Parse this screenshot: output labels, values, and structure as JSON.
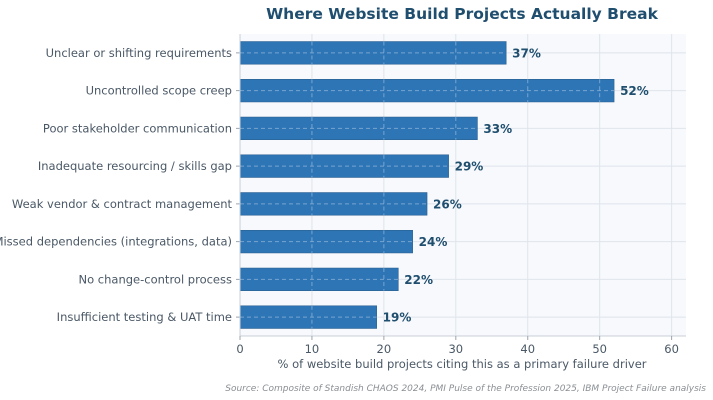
{
  "chart_data": {
    "type": "bar",
    "orientation": "horizontal",
    "title": "Where Website Build Projects Actually Break",
    "xlabel": "% of website build projects citing this as a primary failure driver",
    "ylabel": "",
    "categories": [
      "Unclear or shifting requirements",
      "Uncontrolled scope creep",
      "Poor stakeholder communication",
      "Inadequate resourcing / skills gap",
      "Weak vendor & contract management",
      "Missed dependencies (integrations, data)",
      "No change-control process",
      "Insufficient testing & UAT time"
    ],
    "values": [
      37,
      52,
      33,
      29,
      26,
      24,
      22,
      19
    ],
    "value_labels": [
      "37%",
      "52%",
      "33%",
      "29%",
      "26%",
      "24%",
      "22%",
      "19%"
    ],
    "xlim": [
      0,
      62
    ],
    "xticks": [
      0,
      10,
      20,
      30,
      40,
      50,
      60
    ],
    "xtick_labels": [
      "0",
      "10",
      "20",
      "30",
      "40",
      "50",
      "60"
    ],
    "grid": true,
    "legend": "none",
    "source": "Source: Composite of Standish CHAOS 2024, PMI Pulse of the Profession 2025, IBM Project Failure analysis",
    "colors": {
      "bar": "#2e75b6",
      "bar_edge": "#2a5f8f",
      "title": "#1f4e6e",
      "value_label": "#1f4e6e",
      "plot_bg": "#f7f9fc",
      "grid": "#dfe5ec",
      "text": "#4a5866",
      "source": "#8a8f94"
    }
  }
}
